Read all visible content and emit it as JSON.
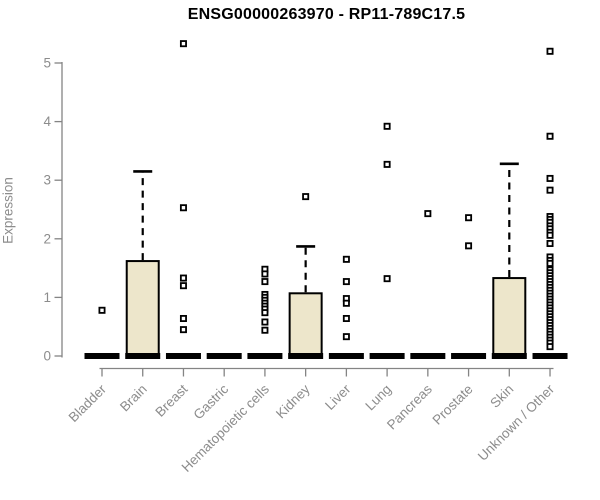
{
  "chart_data": {
    "type": "boxplot",
    "title": "ENSG00000263970 - RP11-789C17.5",
    "xlabel": "",
    "ylabel": "Expression",
    "ylim": [
      0,
      5
    ],
    "yticks": [
      0,
      1,
      2,
      3,
      4,
      5
    ],
    "grid": false,
    "legend": "none",
    "box_fill_color": "#EDE6CB",
    "box_border_color": "#000000",
    "axis_color": "#848484",
    "tick_label_color": "#8C8C8C",
    "outlier_marker": "open-square",
    "categories": [
      "Bladder",
      "Brain",
      "Breast",
      "Gastric",
      "Hematopoietic cells",
      "Kidney",
      "Liver",
      "Lung",
      "Pancreas",
      "Prostate",
      "Skin",
      "Unknown / Other"
    ],
    "series": [
      {
        "category": "Bladder",
        "q1": 0,
        "median": 0,
        "q3": 0,
        "whisker_low": 0,
        "whisker_high": 0,
        "outliers": [
          0.78
        ]
      },
      {
        "category": "Brain",
        "q1": 0,
        "median": 0,
        "q3": 1.62,
        "whisker_low": 0,
        "whisker_high": 3.15,
        "outliers": []
      },
      {
        "category": "Breast",
        "q1": 0,
        "median": 0,
        "q3": 0,
        "whisker_low": 0,
        "whisker_high": 0,
        "outliers": [
          5.33,
          2.53,
          1.33,
          1.2,
          0.64,
          0.45
        ]
      },
      {
        "category": "Gastric",
        "q1": 0,
        "median": 0,
        "q3": 0,
        "whisker_low": 0,
        "whisker_high": 0,
        "outliers": []
      },
      {
        "category": "Hematopoietic cells",
        "q1": 0,
        "median": 0,
        "q3": 0,
        "whisker_low": 0,
        "whisker_high": 0,
        "outliers": [
          1.48,
          1.4,
          1.27,
          1.05,
          1.0,
          0.95,
          0.9,
          0.85,
          0.8,
          0.74,
          0.58,
          0.44
        ]
      },
      {
        "category": "Kidney",
        "q1": 0,
        "median": 0,
        "q3": 1.07,
        "whisker_low": 0,
        "whisker_high": 1.87,
        "outliers": [
          2.72
        ]
      },
      {
        "category": "Liver",
        "q1": 0,
        "median": 0,
        "q3": 0,
        "whisker_low": 0,
        "whisker_high": 0,
        "outliers": [
          1.65,
          1.27,
          0.98,
          0.9,
          0.64,
          0.33
        ]
      },
      {
        "category": "Lung",
        "q1": 0,
        "median": 0,
        "q3": 0,
        "whisker_low": 0,
        "whisker_high": 0,
        "outliers": [
          3.92,
          3.27,
          1.32
        ]
      },
      {
        "category": "Pancreas",
        "q1": 0,
        "median": 0,
        "q3": 0,
        "whisker_low": 0,
        "whisker_high": 0,
        "outliers": [
          2.43
        ]
      },
      {
        "category": "Prostate",
        "q1": 0,
        "median": 0,
        "q3": 0,
        "whisker_low": 0,
        "whisker_high": 0,
        "outliers": [
          2.36,
          1.88
        ]
      },
      {
        "category": "Skin",
        "q1": 0,
        "median": 0,
        "q3": 1.33,
        "whisker_low": 0,
        "whisker_high": 3.28,
        "outliers": []
      },
      {
        "category": "Unknown / Other",
        "q1": 0,
        "median": 0,
        "q3": 0,
        "whisker_low": 0,
        "whisker_high": 0,
        "outliers": [
          5.2,
          3.75,
          3.03,
          2.83,
          2.38,
          2.33,
          2.28,
          2.22,
          2.17,
          2.11,
          2.06,
          1.92,
          1.69,
          1.63,
          1.58,
          1.47,
          1.42,
          1.37,
          1.32,
          1.27,
          1.22,
          1.17,
          1.12,
          1.07,
          1.02,
          0.97,
          0.92,
          0.87,
          0.82,
          0.77,
          0.72,
          0.67,
          0.62,
          0.57,
          0.52,
          0.47,
          0.42,
          0.37,
          0.32,
          0.27,
          0.22,
          0.16
        ]
      }
    ]
  }
}
